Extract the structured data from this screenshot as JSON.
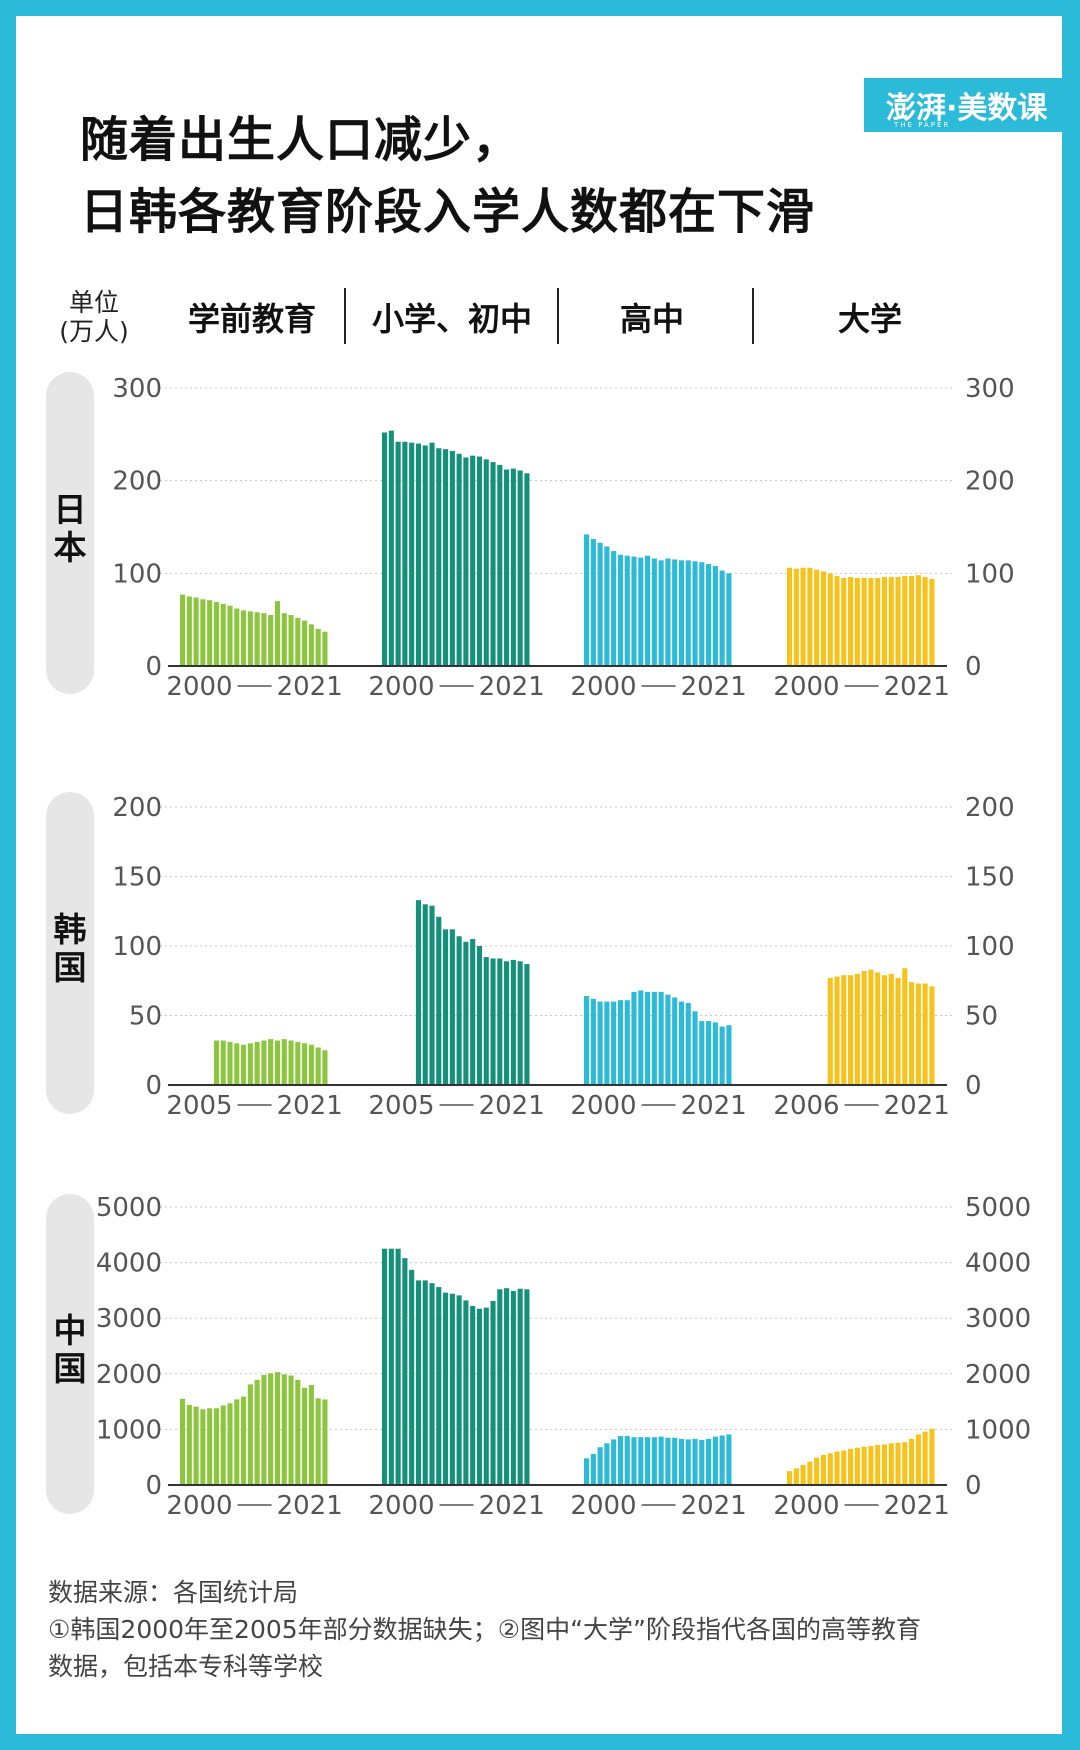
{
  "title_lines": [
    "随着出生人口减少，",
    "日韩各教育阶段入学人数都在下滑"
  ],
  "logo": {
    "text": "澎湃·美数课",
    "sub": "THE PAPER"
  },
  "unit_label": [
    "单位",
    "(万人)"
  ],
  "column_headers": [
    "学前教育",
    "小学、初中",
    "高中",
    "大学"
  ],
  "countries": [
    "日本",
    "韩国",
    "中国"
  ],
  "notes": [
    "数据来源：各国统计局",
    "①韩国2000年至2005年部分数据缺失；②图中“大学”阶段指代各国的高等教育",
    "数据，包括本专科等学校"
  ],
  "colors": {
    "background": "#2bbad8",
    "preschool": "#8cc63f",
    "primary_middle": "#13917b",
    "high_school": "#2bbad8",
    "university": "#f7c21a",
    "grid": "#c8c8c8",
    "axis": "#333333",
    "tick_text": "#555555"
  },
  "chart_data": [
    {
      "type": "bar",
      "country": "日本",
      "ylim": [
        0,
        300
      ],
      "yticks": [
        0,
        100,
        200,
        300
      ],
      "groups": [
        {
          "name": "学前教育",
          "range_label": [
            "2000",
            "2021"
          ],
          "x": [
            2000,
            2001,
            2002,
            2003,
            2004,
            2005,
            2006,
            2007,
            2008,
            2009,
            2010,
            2011,
            2012,
            2013,
            2014,
            2015,
            2016,
            2017,
            2018,
            2019,
            2020,
            2021
          ],
          "values": [
            77,
            75,
            74,
            72,
            71,
            69,
            67,
            65,
            62,
            60,
            59,
            58,
            57,
            55,
            70,
            57,
            55,
            52,
            49,
            45,
            40,
            37
          ]
        },
        {
          "name": "小学、初中",
          "range_label": [
            "2000",
            "2021"
          ],
          "x": [
            2000,
            2001,
            2002,
            2003,
            2004,
            2005,
            2006,
            2007,
            2008,
            2009,
            2010,
            2011,
            2012,
            2013,
            2014,
            2015,
            2016,
            2017,
            2018,
            2019,
            2020,
            2021
          ],
          "values": [
            252,
            254,
            242,
            242,
            241,
            240,
            238,
            241,
            235,
            234,
            232,
            229,
            225,
            227,
            226,
            223,
            220,
            217,
            212,
            213,
            211,
            208
          ]
        },
        {
          "name": "高中",
          "range_label": [
            "2000",
            "2021"
          ],
          "x": [
            2000,
            2001,
            2002,
            2003,
            2004,
            2005,
            2006,
            2007,
            2008,
            2009,
            2010,
            2011,
            2012,
            2013,
            2014,
            2015,
            2016,
            2017,
            2018,
            2019,
            2020,
            2021
          ],
          "values": [
            142,
            137,
            133,
            129,
            124,
            120,
            119,
            118,
            117,
            119,
            116,
            114,
            116,
            115,
            114,
            114,
            113,
            112,
            110,
            108,
            103,
            100
          ]
        },
        {
          "name": "大学",
          "range_label": [
            "2000",
            "2021"
          ],
          "x": [
            2000,
            2001,
            2002,
            2003,
            2004,
            2005,
            2006,
            2007,
            2008,
            2009,
            2010,
            2011,
            2012,
            2013,
            2014,
            2015,
            2016,
            2017,
            2018,
            2019,
            2020,
            2021
          ],
          "values": [
            106,
            105,
            106,
            106,
            104,
            102,
            100,
            97,
            95,
            96,
            95,
            95,
            95,
            95,
            96,
            96,
            96,
            97,
            97,
            98,
            96,
            94
          ]
        }
      ]
    },
    {
      "type": "bar",
      "country": "韩国",
      "ylim": [
        0,
        200
      ],
      "yticks": [
        0,
        50,
        100,
        150,
        200
      ],
      "groups": [
        {
          "name": "学前教育",
          "range_label": [
            "2005",
            "2021"
          ],
          "x": [
            2005,
            2006,
            2007,
            2008,
            2009,
            2010,
            2011,
            2012,
            2013,
            2014,
            2015,
            2016,
            2017,
            2018,
            2019,
            2020,
            2021
          ],
          "values": [
            32,
            32,
            31,
            30,
            29,
            30,
            31,
            32,
            33,
            32,
            33,
            32,
            31,
            30,
            29,
            27,
            25
          ]
        },
        {
          "name": "小学、初中",
          "range_label": [
            "2005",
            "2021"
          ],
          "x": [
            2005,
            2006,
            2007,
            2008,
            2009,
            2010,
            2011,
            2012,
            2013,
            2014,
            2015,
            2016,
            2017,
            2018,
            2019,
            2020,
            2021
          ],
          "values": [
            133,
            130,
            129,
            121,
            112,
            112,
            107,
            103,
            105,
            100,
            92,
            91,
            91,
            89,
            90,
            89,
            87
          ]
        },
        {
          "name": "高中",
          "range_label": [
            "2000",
            "2021"
          ],
          "x": [
            2000,
            2001,
            2002,
            2003,
            2004,
            2005,
            2006,
            2007,
            2008,
            2009,
            2010,
            2011,
            2012,
            2013,
            2014,
            2015,
            2016,
            2017,
            2018,
            2019,
            2020,
            2021
          ],
          "values": [
            64,
            62,
            60,
            60,
            60,
            61,
            61,
            67,
            68,
            67,
            67,
            67,
            65,
            63,
            60,
            59,
            53,
            46,
            46,
            45,
            42,
            43
          ]
        },
        {
          "name": "大学",
          "range_label": [
            "2006",
            "2021"
          ],
          "x": [
            2006,
            2007,
            2008,
            2009,
            2010,
            2011,
            2012,
            2013,
            2014,
            2015,
            2016,
            2017,
            2018,
            2019,
            2020,
            2021
          ],
          "values": [
            77,
            78,
            79,
            79,
            80,
            82,
            83,
            81,
            79,
            80,
            77,
            84,
            74,
            73,
            73,
            71
          ]
        }
      ]
    },
    {
      "type": "bar",
      "country": "中国",
      "ylim": [
        0,
        5000
      ],
      "yticks": [
        0,
        1000,
        2000,
        3000,
        4000,
        5000
      ],
      "groups": [
        {
          "name": "学前教育",
          "range_label": [
            "2000",
            "2021"
          ],
          "x": [
            2000,
            2001,
            2002,
            2003,
            2004,
            2005,
            2006,
            2007,
            2008,
            2009,
            2010,
            2011,
            2012,
            2013,
            2014,
            2015,
            2016,
            2017,
            2018,
            2019,
            2020,
            2021
          ],
          "values": [
            1550,
            1440,
            1410,
            1360,
            1380,
            1380,
            1430,
            1470,
            1540,
            1590,
            1810,
            1890,
            1980,
            2010,
            2030,
            1990,
            1970,
            1890,
            1750,
            1800,
            1560,
            1540
          ]
        },
        {
          "name": "小学、初中",
          "range_label": [
            "2000",
            "2021"
          ],
          "x": [
            2000,
            2001,
            2002,
            2003,
            2004,
            2005,
            2006,
            2007,
            2008,
            2009,
            2010,
            2011,
            2012,
            2013,
            2014,
            2015,
            2016,
            2017,
            2018,
            2019,
            2020,
            2021
          ],
          "values": [
            4250,
            4250,
            4250,
            4080,
            3870,
            3680,
            3680,
            3630,
            3560,
            3460,
            3440,
            3410,
            3320,
            3220,
            3170,
            3190,
            3310,
            3520,
            3540,
            3490,
            3530,
            3520
          ]
        },
        {
          "name": "高中",
          "range_label": [
            "2000",
            "2021"
          ],
          "x": [
            2000,
            2001,
            2002,
            2003,
            2004,
            2005,
            2006,
            2007,
            2008,
            2009,
            2010,
            2011,
            2012,
            2013,
            2014,
            2015,
            2016,
            2017,
            2018,
            2019,
            2020,
            2021
          ],
          "values": [
            480,
            560,
            680,
            750,
            820,
            880,
            880,
            860,
            860,
            860,
            860,
            870,
            850,
            850,
            830,
            820,
            830,
            810,
            830,
            870,
            890,
            910
          ]
        },
        {
          "name": "大学",
          "range_label": [
            "2000",
            "2021"
          ],
          "x": [
            2000,
            2001,
            2002,
            2003,
            2004,
            2005,
            2006,
            2007,
            2008,
            2009,
            2010,
            2011,
            2012,
            2013,
            2014,
            2015,
            2016,
            2017,
            2018,
            2019,
            2020,
            2021
          ],
          "values": [
            250,
            300,
            360,
            420,
            490,
            540,
            570,
            600,
            620,
            650,
            670,
            690,
            700,
            720,
            730,
            750,
            760,
            770,
            830,
            910,
            960,
            1010
          ]
        }
      ]
    }
  ]
}
